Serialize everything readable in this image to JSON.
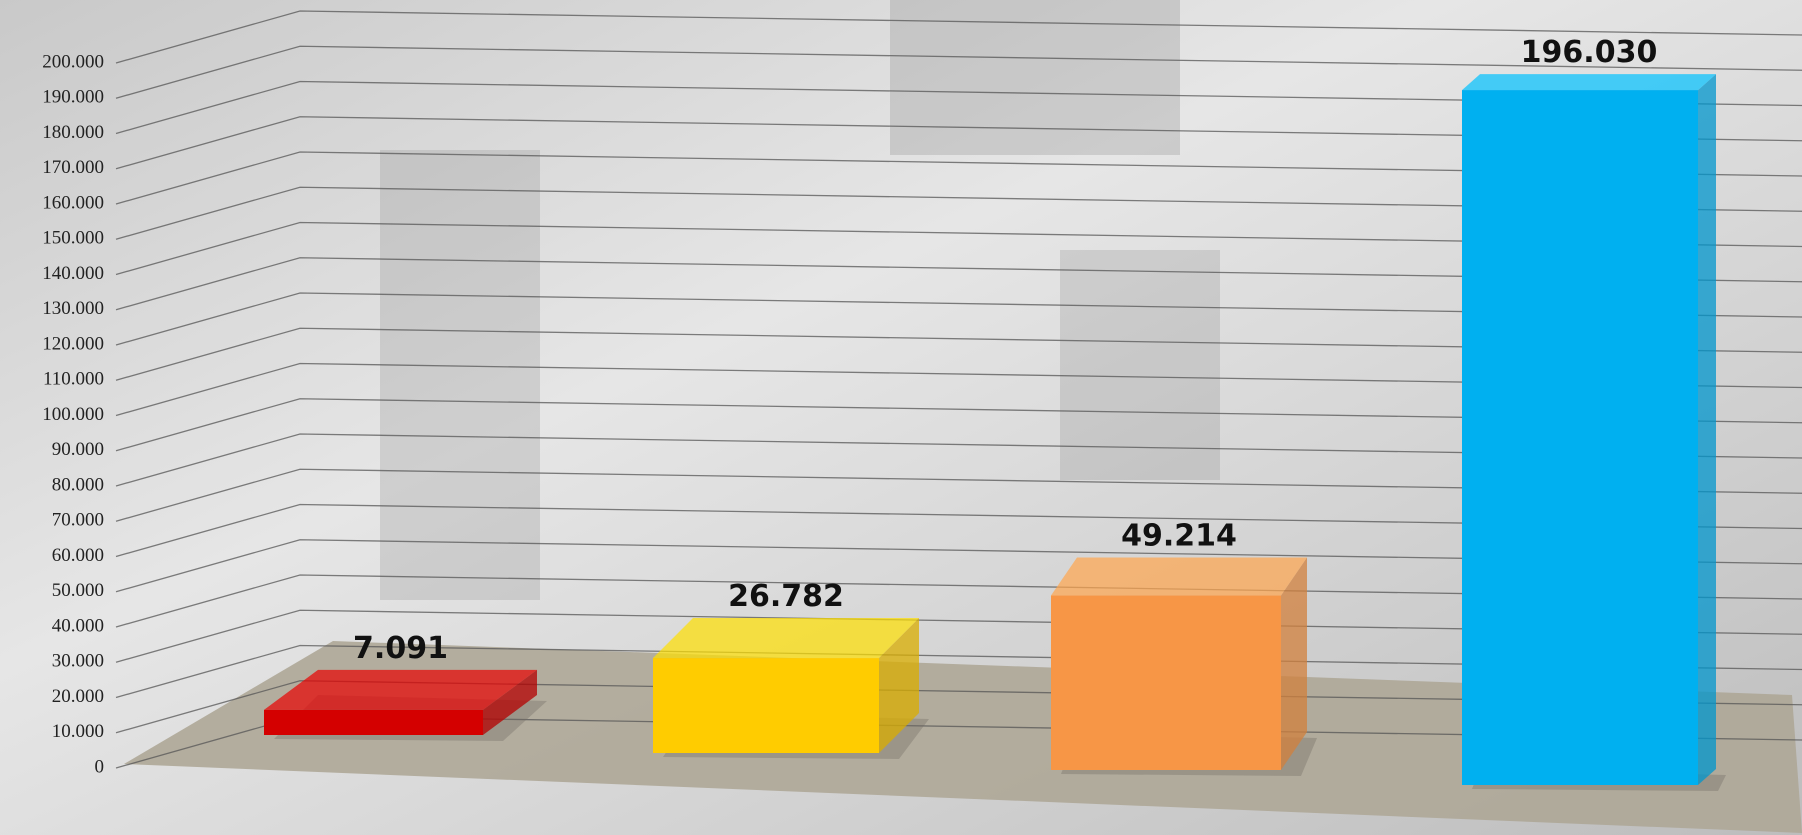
{
  "chart_data": {
    "type": "bar3d",
    "categories": [
      null,
      null,
      null,
      null
    ],
    "values": [
      7091,
      26782,
      49214,
      196030
    ],
    "value_labels": [
      "7.091",
      "26.782",
      "49.214",
      "196.030"
    ],
    "colors": [
      "#d40000",
      "#ffcc00",
      "#f79646",
      "#00b0f0"
    ],
    "ylim": [
      0,
      200000
    ],
    "yticks": [
      0,
      {
        "value": 10000,
        "label": "10.000"
      },
      {
        "value": 20000,
        "label": "20.000"
      },
      {
        "value": 30000,
        "label": "30.000"
      },
      {
        "value": 40000,
        "label": "40.000"
      },
      {
        "value": 50000,
        "label": "50.000"
      },
      {
        "value": 60000,
        "label": "60.000"
      },
      {
        "value": 70000,
        "label": "70.000"
      },
      {
        "value": 80000,
        "label": "80.000"
      },
      {
        "value": 90000,
        "label": "90.000"
      },
      {
        "value": 100000,
        "label": "100.000"
      },
      {
        "value": 110000,
        "label": "110.000"
      },
      {
        "value": 120000,
        "label": "120.000"
      },
      {
        "value": 130000,
        "label": "130.000"
      },
      {
        "value": 140000,
        "label": "140.000"
      },
      {
        "value": 150000,
        "label": "150.000"
      },
      {
        "value": 160000,
        "label": "160.000"
      },
      {
        "value": 170000,
        "label": "170.000"
      },
      {
        "value": 180000,
        "label": "180.000"
      },
      {
        "value": 190000,
        "label": "190.000"
      },
      {
        "value": 200000,
        "label": "200.000"
      }
    ],
    "grid": true
  }
}
